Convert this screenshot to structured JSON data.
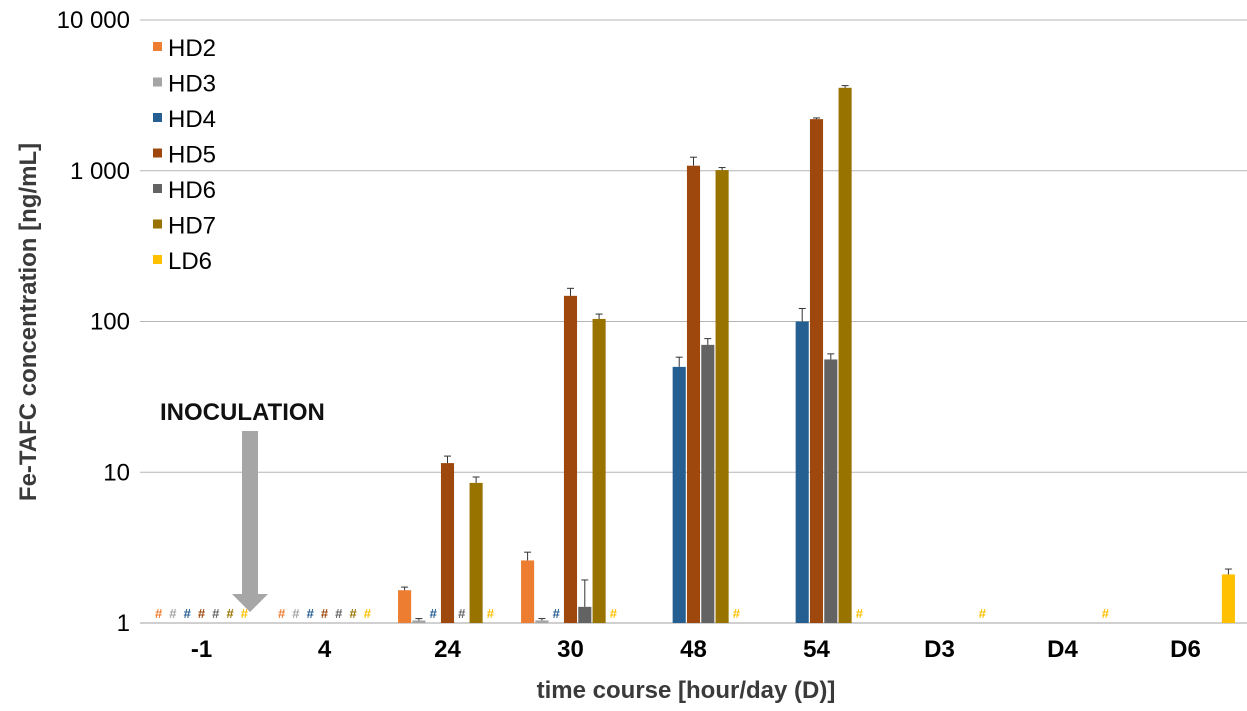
{
  "chart_data": {
    "type": "bar",
    "title": "",
    "xlabel": "time course [hour/day (D)]",
    "ylabel": "Fe-TAFC concentration [ng/mL]",
    "yscale": "log",
    "ylim": [
      1,
      10000
    ],
    "yticks": [
      1,
      10,
      100,
      1000,
      10000
    ],
    "ytick_labels": [
      "1",
      "10",
      "100",
      "1 000",
      "10 000"
    ],
    "grid": true,
    "legend_position": "top-left",
    "categories": [
      "-1",
      "4",
      "24",
      "30",
      "48",
      "54",
      "D3",
      "D4",
      "D6"
    ],
    "series": [
      {
        "name": "HD2",
        "color": "#ed7d31",
        "values": [
          null,
          null,
          1.65,
          2.6,
          null,
          null,
          null,
          null,
          null
        ],
        "errors": [
          0,
          0,
          0.08,
          0.35,
          0,
          0,
          0,
          0,
          0
        ],
        "not_detected": [
          true,
          true,
          false,
          false,
          false,
          false,
          false,
          false,
          false
        ]
      },
      {
        "name": "HD3",
        "color": "#a5a5a5",
        "values": [
          null,
          null,
          1.04,
          1.04,
          null,
          null,
          null,
          null,
          null
        ],
        "errors": [
          0,
          0,
          0.03,
          0.03,
          0,
          0,
          0,
          0,
          0
        ],
        "not_detected": [
          true,
          true,
          false,
          false,
          false,
          false,
          false,
          false,
          false
        ]
      },
      {
        "name": "HD4",
        "color": "#255e91",
        "values": [
          null,
          null,
          null,
          null,
          50,
          100,
          null,
          null,
          null
        ],
        "errors": [
          0,
          0,
          0,
          0,
          8,
          22,
          0,
          0,
          0
        ],
        "not_detected": [
          true,
          true,
          true,
          true,
          false,
          false,
          false,
          false,
          false
        ]
      },
      {
        "name": "HD5",
        "color": "#9e480e",
        "values": [
          null,
          null,
          11.5,
          148,
          1080,
          2200,
          null,
          null,
          null
        ],
        "errors": [
          0,
          0,
          1.3,
          18,
          150,
          40,
          0,
          0,
          0
        ],
        "not_detected": [
          true,
          true,
          false,
          false,
          false,
          false,
          false,
          false,
          false
        ]
      },
      {
        "name": "HD6",
        "color": "#636363",
        "values": [
          null,
          null,
          null,
          1.28,
          70,
          56,
          null,
          null,
          null
        ],
        "errors": [
          0,
          0,
          0,
          0.65,
          7,
          5,
          0,
          0,
          0
        ],
        "not_detected": [
          true,
          true,
          true,
          false,
          false,
          false,
          false,
          false,
          false
        ]
      },
      {
        "name": "HD7",
        "color": "#997300",
        "values": [
          null,
          null,
          8.5,
          104,
          1010,
          3550,
          null,
          null,
          null
        ],
        "errors": [
          0,
          0,
          0.8,
          8,
          40,
          120,
          0,
          0,
          0
        ],
        "not_detected": [
          true,
          true,
          false,
          false,
          false,
          false,
          false,
          false,
          false
        ]
      },
      {
        "name": "LD6",
        "color": "#ffc000",
        "values": [
          null,
          null,
          null,
          null,
          null,
          null,
          null,
          null,
          2.1
        ],
        "errors": [
          0,
          0,
          0,
          0,
          0,
          0,
          0,
          0,
          0.18
        ],
        "not_detected": [
          true,
          true,
          true,
          true,
          true,
          true,
          true,
          true,
          false
        ]
      }
    ],
    "not_detected_marker": "#",
    "annotations": [
      {
        "text": "INOCULATION",
        "arrow": "down",
        "arrow_color": "#a6a6a6"
      }
    ]
  }
}
